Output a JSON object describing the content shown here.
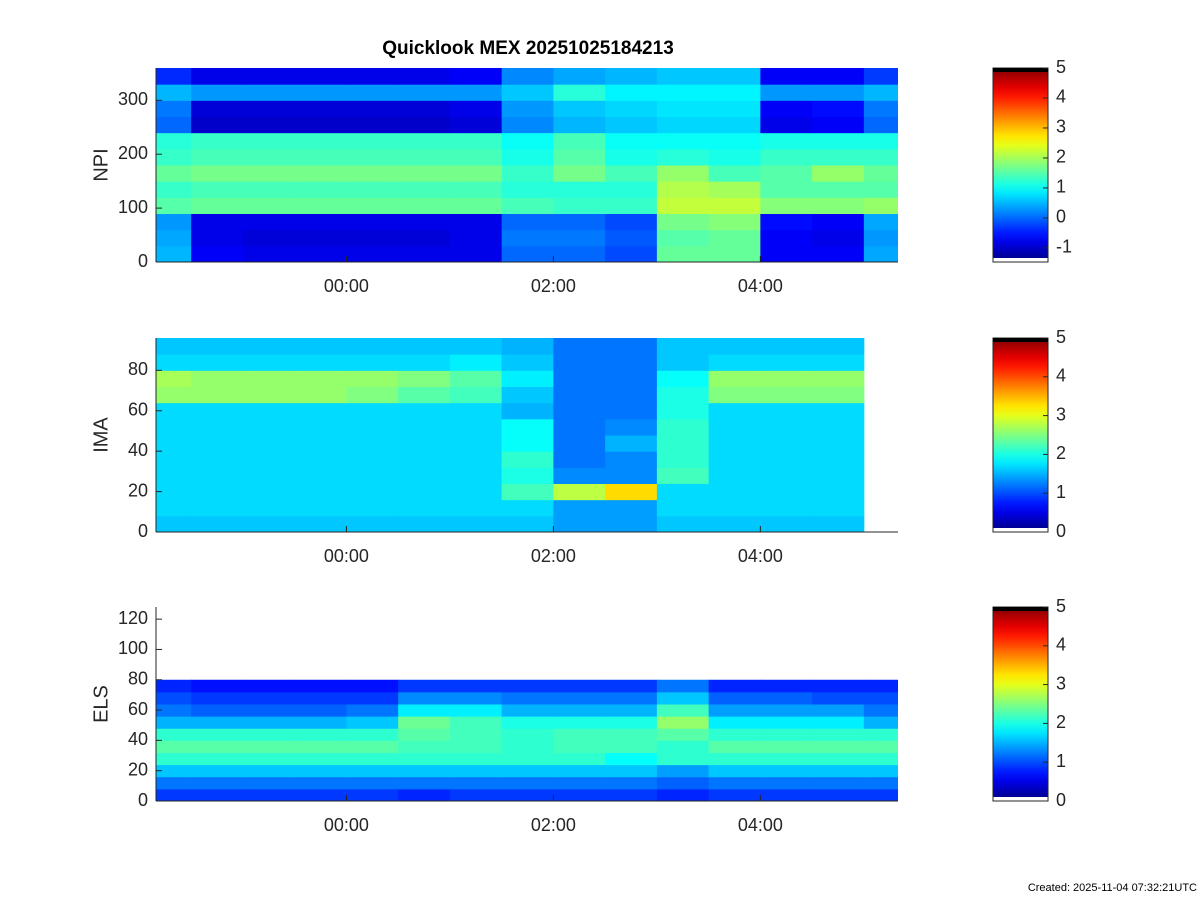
{
  "chart_data": [
    {
      "type": "heatmap",
      "title": "Quicklook MEX 20251025184213",
      "ylabel": "NPI",
      "colormap": "jet",
      "xlim": [
        -1.84,
        5.33
      ],
      "xticks": [
        {
          "value": 0,
          "label": "00:00"
        },
        {
          "value": 2,
          "label": "02:00"
        },
        {
          "value": 4,
          "label": "04:00"
        }
      ],
      "ylim": [
        0,
        360
      ],
      "yticks": [
        0,
        100,
        200,
        300
      ],
      "clim": [
        -1.47,
        5
      ],
      "cticks": [
        -1,
        0,
        1,
        2,
        3,
        4,
        5
      ],
      "x": [
        -1.75,
        -1.25,
        -0.75,
        -0.25,
        0.25,
        0.75,
        1.25,
        1.75,
        2.25,
        2.75,
        3.25,
        3.75,
        4.25,
        4.75,
        5.25
      ],
      "y": [
        15,
        45,
        75,
        105,
        135,
        165,
        195,
        225,
        255,
        285,
        315,
        345
      ],
      "values": [
        [
          0.5,
          -0.7,
          -0.8,
          -0.8,
          -0.8,
          -0.8,
          -0.8,
          0.0,
          0.0,
          -0.2,
          1.6,
          1.6,
          -0.7,
          -0.7,
          0.4
        ],
        [
          0.4,
          -0.8,
          -0.9,
          -0.9,
          -0.9,
          -0.9,
          -0.8,
          0.1,
          0.1,
          -0.1,
          1.5,
          1.6,
          -0.7,
          -0.8,
          0.3
        ],
        [
          0.3,
          -0.8,
          -0.8,
          -0.8,
          -0.8,
          -0.8,
          -0.8,
          0.0,
          0.0,
          -0.2,
          1.7,
          1.8,
          -0.6,
          -0.7,
          0.4
        ],
        [
          1.5,
          1.6,
          1.6,
          1.6,
          1.6,
          1.6,
          1.6,
          1.4,
          1.3,
          1.3,
          2.2,
          2.2,
          1.8,
          1.8,
          1.9
        ],
        [
          1.3,
          1.4,
          1.4,
          1.4,
          1.4,
          1.4,
          1.4,
          1.2,
          1.2,
          1.2,
          2.1,
          2.0,
          1.5,
          1.5,
          1.5
        ],
        [
          1.6,
          1.7,
          1.7,
          1.7,
          1.7,
          1.7,
          1.7,
          1.3,
          1.7,
          1.4,
          1.9,
          1.4,
          1.5,
          1.9,
          1.6
        ],
        [
          1.3,
          1.4,
          1.4,
          1.4,
          1.4,
          1.4,
          1.4,
          1.1,
          1.5,
          1.1,
          1.2,
          1.1,
          1.3,
          1.3,
          1.3
        ],
        [
          1.2,
          1.3,
          1.3,
          1.3,
          1.3,
          1.3,
          1.3,
          1.0,
          1.4,
          1.0,
          1.0,
          1.0,
          1.1,
          1.1,
          1.1
        ],
        [
          0.0,
          -1.0,
          -1.0,
          -1.0,
          -1.0,
          -1.0,
          -0.9,
          0.2,
          0.5,
          0.6,
          0.7,
          0.7,
          -0.8,
          -0.7,
          0.0
        ],
        [
          0.1,
          -0.9,
          -0.9,
          -0.9,
          -0.9,
          -0.9,
          -0.8,
          0.3,
          0.6,
          0.7,
          0.8,
          0.8,
          -0.7,
          -0.6,
          0.1
        ],
        [
          0.5,
          0.3,
          0.3,
          0.3,
          0.3,
          0.3,
          0.3,
          0.6,
          1.2,
          0.9,
          0.9,
          0.9,
          0.3,
          0.3,
          0.5
        ],
        [
          -0.4,
          -0.8,
          -0.8,
          -0.8,
          -0.8,
          -0.8,
          -0.7,
          0.2,
          0.4,
          0.5,
          0.6,
          0.6,
          -0.7,
          -0.7,
          -0.3
        ]
      ]
    },
    {
      "type": "heatmap",
      "ylabel": "IMA",
      "colormap": "jet",
      "xlim": [
        -1.84,
        5.33
      ],
      "xticks": [
        {
          "value": 0,
          "label": "00:00"
        },
        {
          "value": 2,
          "label": "02:00"
        },
        {
          "value": 4,
          "label": "04:00"
        }
      ],
      "ylim": [
        0,
        96
      ],
      "yticks": [
        0,
        20,
        40,
        60,
        80
      ],
      "clim": [
        0,
        5
      ],
      "cticks": [
        0,
        1,
        2,
        3,
        4,
        5
      ],
      "x": [
        -1.75,
        -1.25,
        -0.75,
        -0.25,
        0.25,
        0.75,
        1.25,
        1.75,
        2.25,
        2.75,
        3.25,
        3.75,
        4.25,
        4.75
      ],
      "y": [
        4,
        12,
        20,
        28,
        36,
        44,
        52,
        60,
        68,
        76,
        84,
        92
      ],
      "values": [
        [
          1.6,
          1.6,
          1.6,
          1.6,
          1.6,
          1.6,
          1.6,
          1.6,
          1.4,
          1.4,
          1.6,
          1.6,
          1.6,
          1.6
        ],
        [
          1.7,
          1.7,
          1.7,
          1.7,
          1.7,
          1.7,
          1.7,
          1.7,
          1.4,
          1.4,
          1.7,
          1.7,
          1.7,
          1.7
        ],
        [
          1.7,
          1.7,
          1.7,
          1.7,
          1.7,
          1.7,
          1.7,
          2.2,
          2.8,
          3.3,
          1.7,
          1.7,
          1.7,
          1.7
        ],
        [
          1.7,
          1.7,
          1.7,
          1.7,
          1.7,
          1.7,
          1.7,
          2.0,
          1.3,
          1.3,
          2.2,
          1.7,
          1.7,
          1.7
        ],
        [
          1.7,
          1.7,
          1.7,
          1.7,
          1.7,
          1.7,
          1.7,
          2.1,
          1.2,
          1.3,
          2.1,
          1.7,
          1.7,
          1.7
        ],
        [
          1.7,
          1.7,
          1.7,
          1.7,
          1.7,
          1.7,
          1.7,
          1.9,
          1.2,
          1.5,
          2.1,
          1.7,
          1.7,
          1.7
        ],
        [
          1.7,
          1.7,
          1.7,
          1.7,
          1.7,
          1.7,
          1.7,
          1.9,
          1.2,
          1.3,
          2.1,
          1.7,
          1.7,
          1.7
        ],
        [
          1.7,
          1.7,
          1.7,
          1.7,
          1.7,
          1.7,
          1.7,
          1.5,
          1.2,
          1.2,
          2.0,
          1.7,
          1.7,
          1.7
        ],
        [
          2.6,
          2.6,
          2.6,
          2.6,
          2.5,
          2.3,
          2.2,
          1.6,
          1.2,
          1.2,
          2.0,
          2.5,
          2.5,
          2.5
        ],
        [
          2.7,
          2.6,
          2.6,
          2.6,
          2.6,
          2.5,
          2.3,
          1.8,
          1.2,
          1.2,
          1.9,
          2.6,
          2.6,
          2.6
        ],
        [
          1.7,
          1.7,
          1.7,
          1.7,
          1.7,
          1.7,
          1.8,
          1.6,
          1.2,
          1.2,
          1.6,
          1.7,
          1.7,
          1.7
        ],
        [
          1.6,
          1.6,
          1.6,
          1.6,
          1.6,
          1.6,
          1.6,
          1.5,
          1.2,
          1.2,
          1.6,
          1.6,
          1.6,
          1.6
        ]
      ]
    },
    {
      "type": "heatmap",
      "ylabel": "ELS",
      "colormap": "jet",
      "xlim": [
        -1.84,
        5.33
      ],
      "xticks": [
        {
          "value": 0,
          "label": "00:00"
        },
        {
          "value": 2,
          "label": "02:00"
        },
        {
          "value": 4,
          "label": "04:00"
        }
      ],
      "ylim": [
        0,
        128
      ],
      "yticks": [
        0,
        20,
        40,
        60,
        80,
        100,
        120
      ],
      "clim": [
        0,
        5
      ],
      "cticks": [
        0,
        1,
        2,
        3,
        4,
        5
      ],
      "x": [
        -1.75,
        -1.25,
        -0.75,
        -0.25,
        0.25,
        0.75,
        1.25,
        1.75,
        2.25,
        2.75,
        3.25,
        3.75,
        4.25,
        4.75,
        5.25
      ],
      "y": [
        4,
        12,
        20,
        28,
        36,
        44,
        52,
        60,
        68,
        76
      ],
      "values": [
        [
          0.9,
          0.9,
          0.9,
          0.9,
          0.9,
          0.8,
          0.9,
          0.9,
          0.9,
          0.9,
          0.8,
          0.9,
          0.9,
          0.9,
          0.9
        ],
        [
          1.2,
          1.2,
          1.2,
          1.2,
          1.2,
          1.2,
          1.2,
          1.2,
          1.2,
          1.2,
          1.1,
          1.2,
          1.2,
          1.2,
          1.2
        ],
        [
          1.6,
          1.6,
          1.6,
          1.6,
          1.6,
          1.6,
          1.6,
          1.6,
          1.6,
          1.6,
          1.4,
          1.6,
          1.6,
          1.6,
          1.6
        ],
        [
          2.1,
          2.1,
          2.1,
          2.1,
          2.1,
          2.1,
          2.1,
          2.1,
          2.1,
          1.9,
          2.1,
          2.1,
          2.1,
          2.1,
          2.1
        ],
        [
          2.3,
          2.3,
          2.3,
          2.3,
          2.3,
          2.2,
          2.2,
          2.1,
          2.2,
          2.2,
          2.1,
          2.3,
          2.3,
          2.3,
          2.3
        ],
        [
          2.1,
          2.1,
          2.1,
          2.1,
          2.1,
          2.3,
          2.2,
          2.1,
          2.2,
          2.2,
          2.3,
          2.1,
          2.1,
          2.1,
          2.1
        ],
        [
          1.5,
          1.5,
          1.5,
          1.5,
          1.6,
          2.4,
          2.2,
          2.0,
          2.0,
          2.0,
          2.6,
          1.8,
          1.8,
          1.8,
          1.5
        ],
        [
          1.2,
          1.1,
          1.1,
          1.1,
          1.2,
          1.8,
          1.8,
          1.5,
          1.5,
          1.5,
          2.2,
          1.4,
          1.4,
          1.4,
          1.2
        ],
        [
          1.0,
          0.9,
          0.9,
          0.9,
          0.9,
          1.3,
          1.3,
          1.2,
          1.2,
          1.2,
          1.6,
          1.1,
          1.1,
          1.0,
          1.0
        ],
        [
          0.8,
          0.7,
          0.7,
          0.7,
          0.7,
          0.9,
          0.9,
          0.9,
          0.9,
          0.9,
          1.2,
          0.8,
          0.8,
          0.8,
          0.8
        ]
      ]
    }
  ],
  "footer": "Created: 2025-11-04 07:32:21UTC"
}
